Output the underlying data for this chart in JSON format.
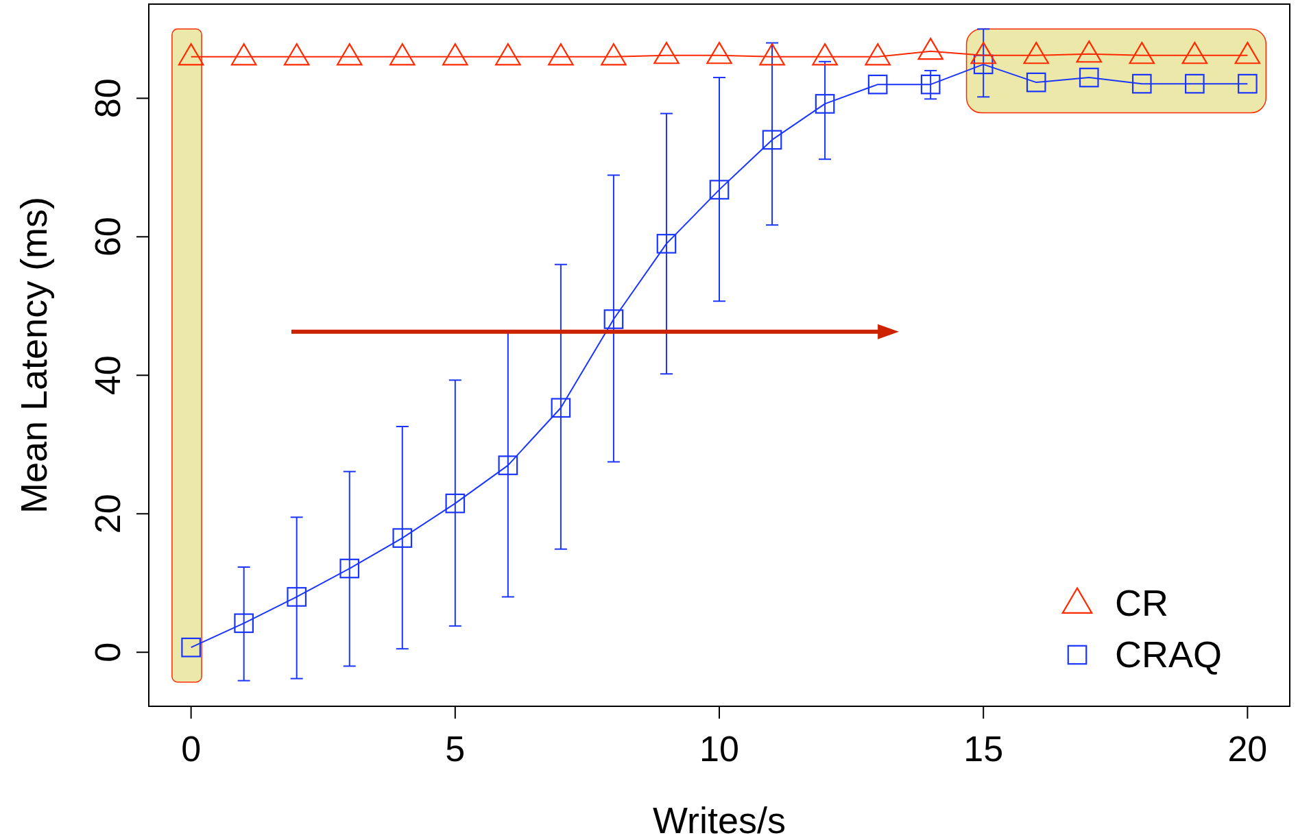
{
  "chart_data": {
    "type": "line",
    "xlabel": "Writes/s",
    "ylabel": "Mean Latency (ms)",
    "x": [
      0,
      1,
      2,
      3,
      4,
      5,
      6,
      7,
      8,
      9,
      10,
      11,
      12,
      13,
      14,
      15,
      16,
      17,
      18,
      19,
      20
    ],
    "xlim": [
      -0.8,
      20.8
    ],
    "xticks": [
      0,
      5,
      10,
      15,
      20
    ],
    "ylim": [
      -7.8,
      93.6
    ],
    "yticks": [
      0,
      20,
      40,
      60,
      80
    ],
    "grid": false,
    "legend": "bottom right",
    "line_style": "solid",
    "series": [
      {
        "name": "CR",
        "color": "#ff2a00",
        "marker": "triangle",
        "values": [
          86,
          86,
          86,
          86,
          86,
          86,
          86,
          86,
          86,
          86.2,
          86.2,
          86,
          86,
          86,
          86.8,
          86.2,
          86.2,
          86.4,
          86.2,
          86.2,
          86.2
        ]
      },
      {
        "name": "CRAQ",
        "color": "#1a35ff",
        "marker": "square",
        "values": [
          0.7,
          4.2,
          8.0,
          12.1,
          16.5,
          21.5,
          27.0,
          35.3,
          48.1,
          59.0,
          66.8,
          74.0,
          79.2,
          82.0,
          82.0,
          84.9,
          82.3,
          83.0,
          82.1,
          82.1,
          82.1
        ],
        "errors": [
          null,
          [
            -4.1,
            12.3
          ],
          [
            -3.8,
            19.5
          ],
          [
            -2.0,
            26.1
          ],
          [
            0.5,
            32.6
          ],
          [
            3.8,
            39.3
          ],
          [
            8.0,
            46.4
          ],
          [
            14.9,
            56.0
          ],
          [
            27.5,
            68.9
          ],
          [
            40.2,
            77.8
          ],
          [
            50.7,
            83.0
          ],
          [
            61.7,
            88.0
          ],
          [
            71.2,
            85.3
          ],
          null,
          [
            79.9,
            84.0
          ],
          [
            80.2,
            90.0
          ],
          null,
          null,
          null,
          null,
          null
        ]
      }
    ]
  }
}
